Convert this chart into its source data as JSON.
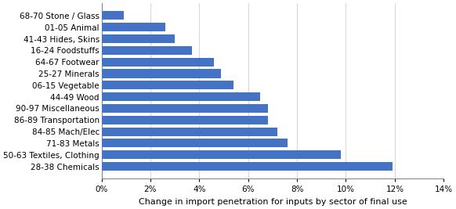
{
  "categories": [
    "28-38 Chemicals",
    "50-63 Textiles, Clothing",
    "71-83 Metals",
    "84-85 Mach/Elec",
    "86-89 Transportation",
    "90-97 Miscellaneous",
    "44-49 Wood",
    "06-15 Vegetable",
    "25-27 Minerals",
    "64-67 Footwear",
    "16-24 Foodstuffs",
    "41-43 Hides, Skins",
    "01-05 Animal",
    "68-70 Stone / Glass"
  ],
  "values": [
    0.119,
    0.098,
    0.076,
    0.072,
    0.068,
    0.068,
    0.065,
    0.054,
    0.049,
    0.046,
    0.037,
    0.03,
    0.026,
    0.009
  ],
  "bar_color": "#4472C4",
  "xlabel": "Change in import penetration for inputs by sector of final use",
  "xlim": [
    0,
    0.14
  ],
  "xticks": [
    0,
    0.02,
    0.04,
    0.06,
    0.08,
    0.1,
    0.12,
    0.14
  ],
  "background_color": "#ffffff",
  "grid_color": "#d9d9d9",
  "ylabel_fontsize": 7.5,
  "xlabel_fontsize": 8,
  "xtick_fontsize": 7.5,
  "bar_height": 0.75
}
